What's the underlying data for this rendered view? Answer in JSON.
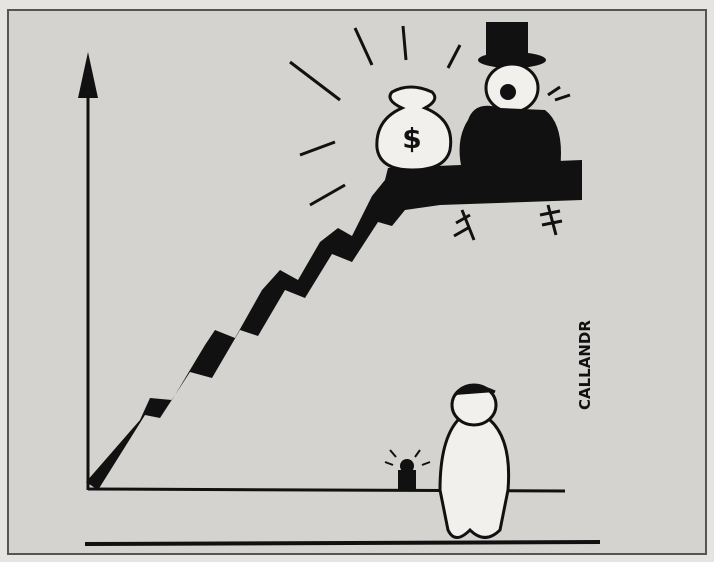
{
  "artwork": {
    "bag_symbol": "$",
    "signature": "CALLANDR"
  }
}
